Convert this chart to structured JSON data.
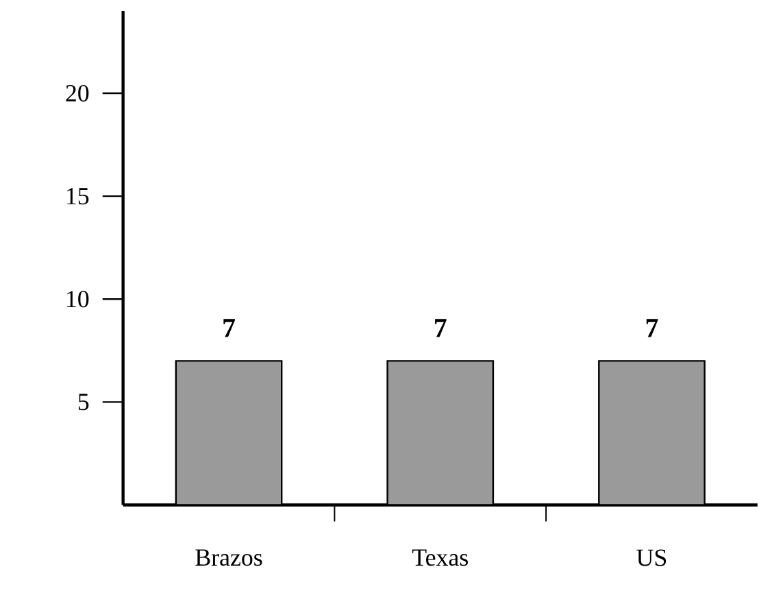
{
  "chart_data": {
    "type": "bar",
    "categories": [
      "Brazos",
      "Texas",
      "US"
    ],
    "values": [
      7,
      7,
      7
    ],
    "color": "#9a9a9a",
    "data_labels": true,
    "ylim": [
      0,
      24
    ],
    "yticks": [
      5,
      10,
      15,
      20
    ]
  }
}
